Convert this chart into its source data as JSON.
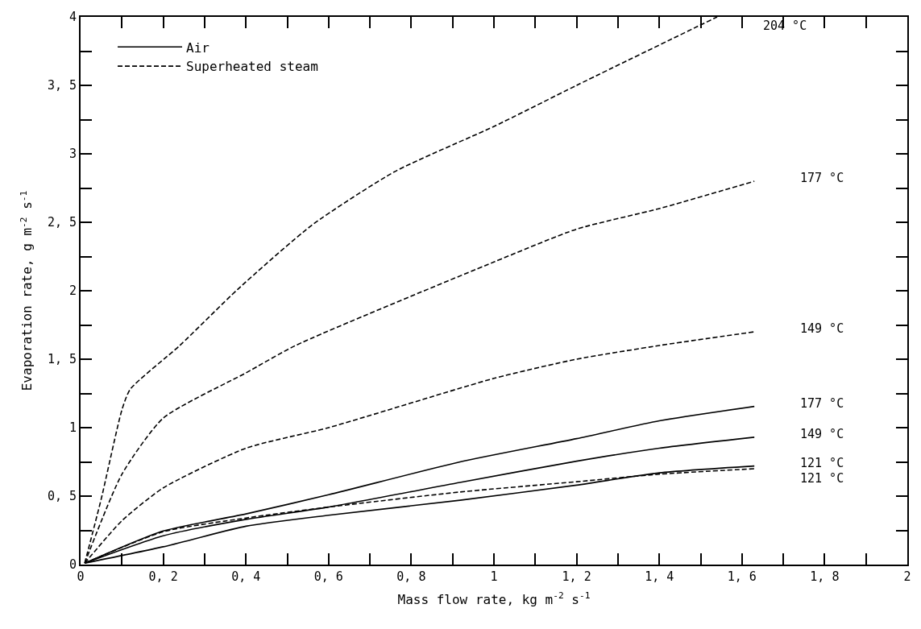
{
  "chart_data": {
    "type": "line",
    "xlabel": "Mass flow rate, kg m$^{-2}$ s$^{-1}$",
    "ylabel": "Evaporation rate, g m$^{-2}$ s$^{-1}$",
    "xlim": [
      0,
      2
    ],
    "ylim": [
      0,
      4
    ],
    "xticks": [
      0,
      {
        "value": 0.1,
        "label": null
      },
      {
        "value": 0.2,
        "label": "0, 2"
      },
      {
        "value": 0.3,
        "label": null
      },
      {
        "value": 0.4,
        "label": "0, 4"
      },
      {
        "value": 0.5,
        "label": null
      },
      {
        "value": 0.6,
        "label": "0, 6"
      },
      {
        "value": 0.7,
        "label": null
      },
      {
        "value": 0.8,
        "label": "0, 8"
      },
      {
        "value": 0.9,
        "label": null
      },
      1,
      {
        "value": 1.1,
        "label": null
      },
      {
        "value": 1.2,
        "label": "1, 2"
      },
      {
        "value": 1.3,
        "label": null
      },
      {
        "value": 1.4,
        "label": "1, 4"
      },
      {
        "value": 1.5,
        "label": null
      },
      {
        "value": 1.6,
        "label": "1, 6"
      },
      {
        "value": 1.7,
        "label": null
      },
      {
        "value": 1.8,
        "label": "1, 8"
      },
      {
        "value": 1.9,
        "label": null
      },
      2
    ],
    "yticks": [
      0,
      {
        "value": 0.25,
        "label": null
      },
      {
        "value": 0.5,
        "label": "0, 5"
      },
      {
        "value": 0.75,
        "label": null
      },
      1,
      {
        "value": 1.25,
        "label": null
      },
      {
        "value": 1.5,
        "label": "1, 5"
      },
      {
        "value": 1.75,
        "label": null
      },
      2,
      {
        "value": 2.25,
        "label": null
      },
      {
        "value": 2.5,
        "label": "2, 5"
      },
      {
        "value": 2.75,
        "label": null
      },
      3,
      {
        "value": 3.25,
        "label": null
      },
      {
        "value": 3.5,
        "label": "3, 5"
      },
      {
        "value": 3.75,
        "label": null
      },
      4
    ],
    "legend": "top left",
    "marker": "none",
    "series": [
      {
        "name": "Superheated steam",
        "color": "#000000",
        "line_style": "dashed",
        "x": [
          0.01,
          0.05,
          0.1,
          0.12,
          0.24,
          0.38,
          0.56,
          0.76,
          1.0,
          1.2,
          1.54
        ],
        "values": [
          0.01,
          0.48,
          1.13,
          1.28,
          1.6,
          2.01,
          2.48,
          2.87,
          3.2,
          3.5,
          4.0
        ]
      },
      {
        "color": "#000000",
        "line_style": "dashed",
        "x": [
          0.01,
          0.1,
          0.2,
          0.4,
          0.52,
          1.0,
          1.2,
          1.4,
          1.63
        ],
        "values": [
          0.01,
          0.66,
          1.07,
          1.4,
          1.6,
          2.21,
          2.45,
          2.6,
          2.8
        ]
      },
      {
        "color": "#000000",
        "line_style": "dashed",
        "x": [
          0.01,
          0.1,
          0.2,
          0.4,
          0.6,
          1.0,
          1.2,
          1.4,
          1.63
        ],
        "values": [
          0.01,
          0.32,
          0.56,
          0.85,
          1.0,
          1.36,
          1.5,
          1.6,
          1.7
        ]
      },
      {
        "name": "Air",
        "color": "#000000",
        "line_style": "solid",
        "x": [
          0.01,
          0.2,
          0.4,
          0.6,
          0.918,
          1.2,
          1.4,
          1.63
        ],
        "values": [
          0.01,
          0.245,
          0.37,
          0.51,
          0.75,
          0.92,
          1.05,
          1.155
        ]
      },
      {
        "color": "#000000",
        "line_style": "solid",
        "x": [
          0.01,
          0.2,
          0.4,
          0.6,
          0.918,
          1.2,
          1.4,
          1.63
        ],
        "values": [
          0.01,
          0.21,
          0.33,
          0.42,
          0.6,
          0.755,
          0.85,
          0.93
        ]
      },
      {
        "color": "#000000",
        "line_style": "solid",
        "x": [
          0.01,
          0.2,
          0.4,
          0.6,
          0.918,
          1.2,
          1.4,
          1.63
        ],
        "values": [
          0.01,
          0.13,
          0.28,
          0.36,
          0.47,
          0.58,
          0.67,
          0.72
        ]
      },
      {
        "color": "#000000",
        "line_style": "dashed",
        "x": [
          0.01,
          0.2,
          0.4,
          0.6,
          0.918,
          1.2,
          1.4,
          1.63
        ],
        "values": [
          0.01,
          0.24,
          0.34,
          0.42,
          0.53,
          0.605,
          0.66,
          0.7
        ]
      }
    ],
    "annotations": [
      "204 °C",
      "177 °C",
      "149 °C",
      "177 °C",
      "149 °C",
      "121 °C",
      "121 °C"
    ]
  }
}
